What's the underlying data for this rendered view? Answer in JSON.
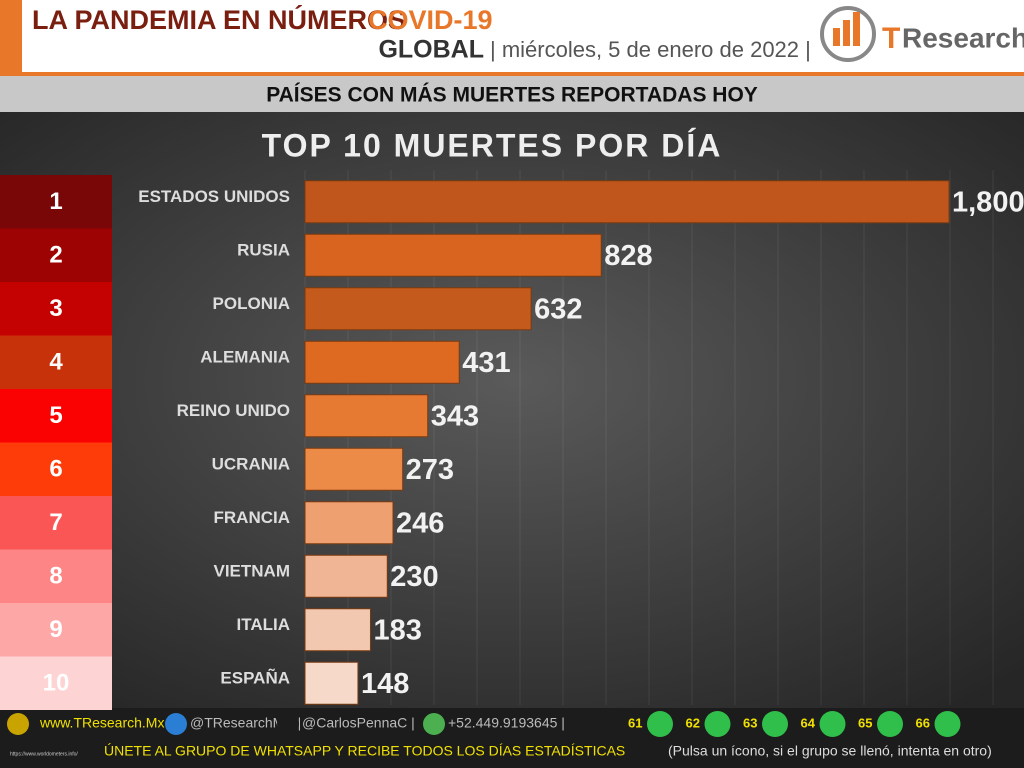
{
  "header": {
    "title_a": "LA PANDEMIA EN NÚMEROS",
    "title_b": "COVID-19",
    "region": "GLOBAL",
    "date": "| miércoles, 5 de enero de 2022 |",
    "logo_t": "T",
    "logo_rest": "Research"
  },
  "banner": "PAÍSES CON MÁS MUERTES REPORTADAS HOY",
  "ranks": [
    {
      "label": "1",
      "color": "#7a0707"
    },
    {
      "label": "2",
      "color": "#9e0303"
    },
    {
      "label": "3",
      "color": "#c40202"
    },
    {
      "label": "4",
      "color": "#c8320a"
    },
    {
      "label": "5",
      "color": "#fb0202"
    },
    {
      "label": "6",
      "color": "#fd3c0a"
    },
    {
      "label": "7",
      "color": "#fb5656"
    },
    {
      "label": "8",
      "color": "#fd8585"
    },
    {
      "label": "9",
      "color": "#fea7a7"
    },
    {
      "label": "10",
      "color": "#fed3d3"
    }
  ],
  "chart_data": {
    "type": "bar",
    "orientation": "horizontal",
    "title": "TOP 10 MUERTES POR DÍA",
    "categories": [
      "ESTADOS UNIDOS",
      "RUSIA",
      "POLONIA",
      "ALEMANIA",
      "REINO UNIDO",
      "UCRANIA",
      "FRANCIA",
      "VIETNAM",
      "ITALIA",
      "ESPAÑA"
    ],
    "values": [
      1800,
      828,
      632,
      431,
      343,
      273,
      246,
      230,
      183,
      148
    ],
    "value_labels": [
      "1,800",
      "828",
      "632",
      "431",
      "343",
      "273",
      "246",
      "230",
      "183",
      "148"
    ],
    "colors": [
      "#c0561b",
      "#d8641f",
      "#c45a1b",
      "#de6a22",
      "#e67a33",
      "#ec8a48",
      "#eea070",
      "#f0b594",
      "#f3c8b0",
      "#f6d9c9"
    ],
    "xlim": [
      0,
      1800
    ]
  },
  "footer": {
    "contacts": [
      "www.TResearch.Mx |",
      "@TResearchMX |",
      "@CarlosPennaC |",
      "+52.449.9193645 |"
    ],
    "groups": [
      "61",
      "62",
      "63",
      "64",
      "65",
      "66"
    ],
    "call": "ÚNETE AL GRUPO DE WHATSAPP Y RECIBE TODOS LOS DÍAS ESTADÍSTICAS",
    "note": "(Pulsa un ícono, si el grupo se llenó, intenta en otro)",
    "source": "https://www.worldometers.info/"
  }
}
